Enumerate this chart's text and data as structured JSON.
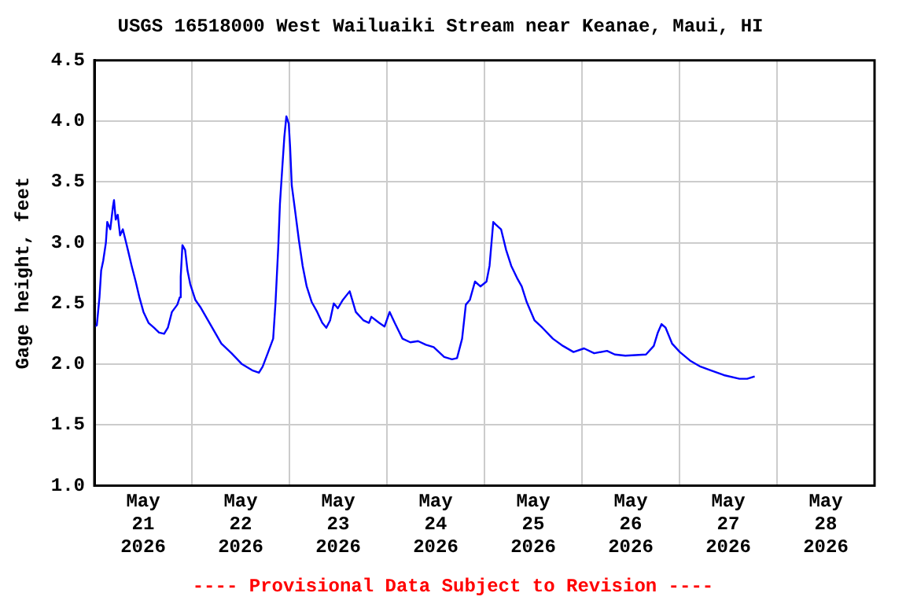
{
  "chart_data": {
    "type": "line",
    "title": "USGS 16518000 West Wailuaiki Stream near Keanae, Maui, HI",
    "ylabel": "Gage height, feet",
    "annotations": [
      "---- Provisional Data Subject to Revision ----"
    ],
    "grid": true,
    "legend": false,
    "marker": "none",
    "line_style": "solid",
    "xlim": [
      "2026-05-21T00:00",
      "2026-05-29T00:00"
    ],
    "xticks": [
      {
        "value": "2026-05-21T00:00",
        "label": null
      },
      {
        "value": "2026-05-21T12:00",
        "label": "May\n21\n2026"
      },
      {
        "value": "2026-05-22T00:00",
        "label": null
      },
      {
        "value": "2026-05-22T12:00",
        "label": "May\n22\n2026"
      },
      {
        "value": "2026-05-23T00:00",
        "label": null
      },
      {
        "value": "2026-05-23T12:00",
        "label": "May\n23\n2026"
      },
      {
        "value": "2026-05-24T00:00",
        "label": null
      },
      {
        "value": "2026-05-24T12:00",
        "label": "May\n24\n2026"
      },
      {
        "value": "2026-05-25T00:00",
        "label": null
      },
      {
        "value": "2026-05-25T12:00",
        "label": "May\n25\n2026"
      },
      {
        "value": "2026-05-26T00:00",
        "label": null
      },
      {
        "value": "2026-05-26T12:00",
        "label": "May\n26\n2026"
      },
      {
        "value": "2026-05-27T00:00",
        "label": null
      },
      {
        "value": "2026-05-27T12:00",
        "label": "May\n27\n2026"
      },
      {
        "value": "2026-05-28T00:00",
        "label": null
      },
      {
        "value": "2026-05-28T12:00",
        "label": "May\n28\n2026"
      },
      {
        "value": "2026-05-29T00:00",
        "label": null
      }
    ],
    "ylim": [
      1.0,
      4.5
    ],
    "yticks": [
      {
        "value": 1.0,
        "label": "1.0"
      },
      {
        "value": 1.5,
        "label": "1.5"
      },
      {
        "value": 2.0,
        "label": "2.0"
      },
      {
        "value": 2.5,
        "label": "2.5"
      },
      {
        "value": 3.0,
        "label": "3.0"
      },
      {
        "value": 3.5,
        "label": "3.5"
      },
      {
        "value": 4.0,
        "label": "4.0"
      },
      {
        "value": 4.5,
        "label": "4.5"
      }
    ],
    "series": [
      {
        "color": "#0000ff",
        "x": [
          "2026-05-21T00:00",
          "2026-05-21T00:36",
          "2026-05-21T01:15",
          "2026-05-21T01:40",
          "2026-05-21T02:10",
          "2026-05-21T02:50",
          "2026-05-21T03:10",
          "2026-05-21T03:55",
          "2026-05-21T04:35",
          "2026-05-21T04:50",
          "2026-05-21T05:15",
          "2026-05-21T05:45",
          "2026-05-21T06:20",
          "2026-05-21T07:00",
          "2026-05-21T07:40",
          "2026-05-21T08:15",
          "2026-05-21T09:10",
          "2026-05-21T10:10",
          "2026-05-21T11:05",
          "2026-05-21T12:05",
          "2026-05-21T13:20",
          "2026-05-21T14:40",
          "2026-05-21T15:55",
          "2026-05-21T17:10",
          "2026-05-21T18:05",
          "2026-05-21T19:05",
          "2026-05-21T20:25",
          "2026-05-21T21:00",
          "2026-05-21T21:15",
          "2026-05-21T21:40",
          "2026-05-21T22:20",
          "2026-05-21T22:55",
          "2026-05-21T23:35",
          "2026-05-22T00:50",
          "2026-05-22T02:05",
          "2026-05-22T04:40",
          "2026-05-22T07:15",
          "2026-05-22T09:45",
          "2026-05-22T12:20",
          "2026-05-22T14:50",
          "2026-05-22T16:30",
          "2026-05-22T17:25",
          "2026-05-22T18:40",
          "2026-05-22T20:00",
          "2026-05-22T20:35",
          "2026-05-22T21:15",
          "2026-05-22T21:40",
          "2026-05-22T22:15",
          "2026-05-22T22:45",
          "2026-05-22T23:15",
          "2026-05-22T23:50",
          "2026-05-23T00:10",
          "2026-05-23T00:35",
          "2026-05-23T01:20",
          "2026-05-23T02:20",
          "2026-05-23T03:15",
          "2026-05-23T04:15",
          "2026-05-23T05:30",
          "2026-05-23T06:50",
          "2026-05-23T08:05",
          "2026-05-23T09:05",
          "2026-05-23T10:00",
          "2026-05-23T10:55",
          "2026-05-23T11:55",
          "2026-05-23T13:10",
          "2026-05-23T14:50",
          "2026-05-23T16:20",
          "2026-05-23T18:15",
          "2026-05-23T19:35",
          "2026-05-23T20:10",
          "2026-05-23T22:05",
          "2026-05-23T23:25",
          "2026-05-24T00:40",
          "2026-05-24T01:55",
          "2026-05-24T03:50",
          "2026-05-24T05:45",
          "2026-05-24T07:40",
          "2026-05-24T09:35",
          "2026-05-24T11:30",
          "2026-05-24T14:05",
          "2026-05-24T16:00",
          "2026-05-24T17:15",
          "2026-05-24T18:30",
          "2026-05-24T19:25",
          "2026-05-24T20:25",
          "2026-05-24T21:40",
          "2026-05-24T23:00",
          "2026-05-25T00:30",
          "2026-05-25T01:15",
          "2026-05-25T02:10",
          "2026-05-25T02:45",
          "2026-05-25T04:05",
          "2026-05-25T05:20",
          "2026-05-25T06:35",
          "2026-05-25T08:10",
          "2026-05-25T09:10",
          "2026-05-25T10:25",
          "2026-05-25T12:20",
          "2026-05-25T14:15",
          "2026-05-25T16:50",
          "2026-05-25T19:20",
          "2026-05-25T21:55",
          "2026-05-26T00:30",
          "2026-05-26T03:00",
          "2026-05-26T06:10",
          "2026-05-26T08:05",
          "2026-05-26T10:40",
          "2026-05-26T15:45",
          "2026-05-26T17:40",
          "2026-05-26T18:40",
          "2026-05-26T19:35",
          "2026-05-26T20:35",
          "2026-05-26T22:10",
          "2026-05-27T00:05",
          "2026-05-27T02:35",
          "2026-05-27T05:10",
          "2026-05-27T07:40",
          "2026-05-27T10:55",
          "2026-05-27T14:45",
          "2026-05-27T16:40",
          "2026-05-27T18:30"
        ],
        "values": [
          2.31,
          2.32,
          2.55,
          2.77,
          2.85,
          3.0,
          3.17,
          3.11,
          3.3,
          3.35,
          3.19,
          3.23,
          3.06,
          3.11,
          3.02,
          2.94,
          2.81,
          2.68,
          2.55,
          2.43,
          2.34,
          2.3,
          2.26,
          2.25,
          2.3,
          2.43,
          2.49,
          2.55,
          2.72,
          2.98,
          2.94,
          2.77,
          2.66,
          2.53,
          2.47,
          2.32,
          2.17,
          2.09,
          2.0,
          1.95,
          1.93,
          1.98,
          2.09,
          2.21,
          2.51,
          2.96,
          3.32,
          3.62,
          3.87,
          4.04,
          3.98,
          3.79,
          3.47,
          3.28,
          3.02,
          2.81,
          2.64,
          2.51,
          2.43,
          2.34,
          2.3,
          2.36,
          2.5,
          2.46,
          2.53,
          2.6,
          2.43,
          2.36,
          2.34,
          2.39,
          2.34,
          2.31,
          2.43,
          2.34,
          2.21,
          2.18,
          2.19,
          2.16,
          2.14,
          2.06,
          2.04,
          2.05,
          2.21,
          2.49,
          2.53,
          2.68,
          2.64,
          2.68,
          2.81,
          3.17,
          3.15,
          3.11,
          2.94,
          2.81,
          2.7,
          2.64,
          2.51,
          2.36,
          2.3,
          2.21,
          2.15,
          2.1,
          2.13,
          2.09,
          2.11,
          2.08,
          2.07,
          2.08,
          2.15,
          2.26,
          2.33,
          2.3,
          2.17,
          2.1,
          2.03,
          1.98,
          1.95,
          1.91,
          1.88,
          1.88,
          1.9
        ]
      }
    ]
  }
}
